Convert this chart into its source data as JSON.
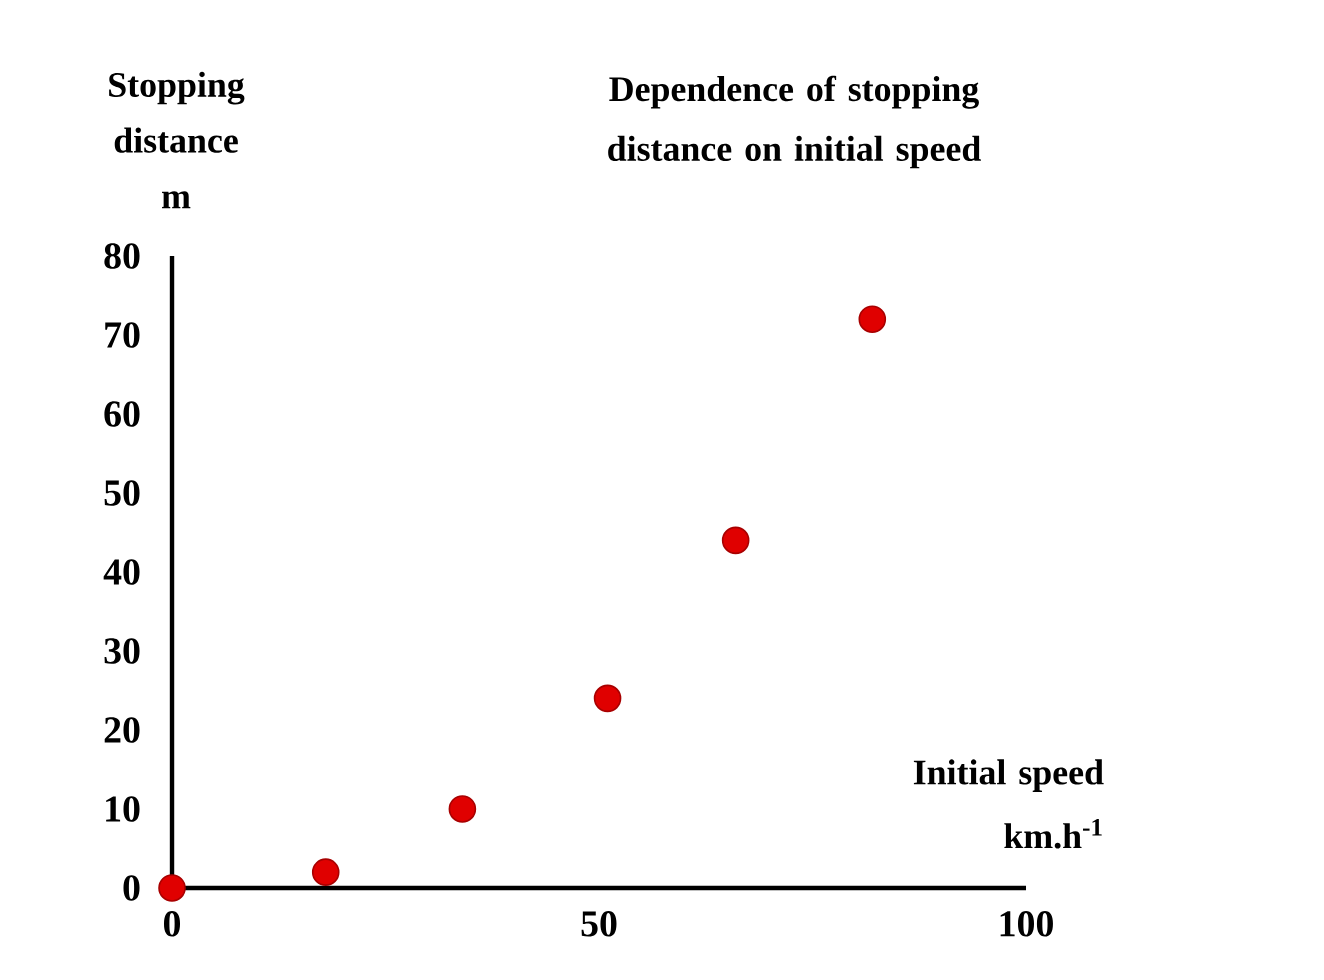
{
  "chart_data": {
    "type": "scatter",
    "title": "Dependence of stopping distance on initial speed",
    "xlabel": "Initial speed km.h$^{-1}$",
    "ylabel": "Stopping distance m",
    "x": [
      0,
      18,
      34,
      51,
      66,
      82
    ],
    "series": [
      {
        "color": "#e00000",
        "values": [
          0,
          2,
          10,
          24,
          44,
          72
        ]
      }
    ],
    "marker": "circle",
    "xlim": [
      0,
      100
    ],
    "ylim": [
      0,
      80
    ],
    "xticks": [
      0,
      50,
      100
    ],
    "yticks": [
      0,
      10,
      20,
      30,
      40,
      50,
      60,
      70,
      80
    ]
  }
}
